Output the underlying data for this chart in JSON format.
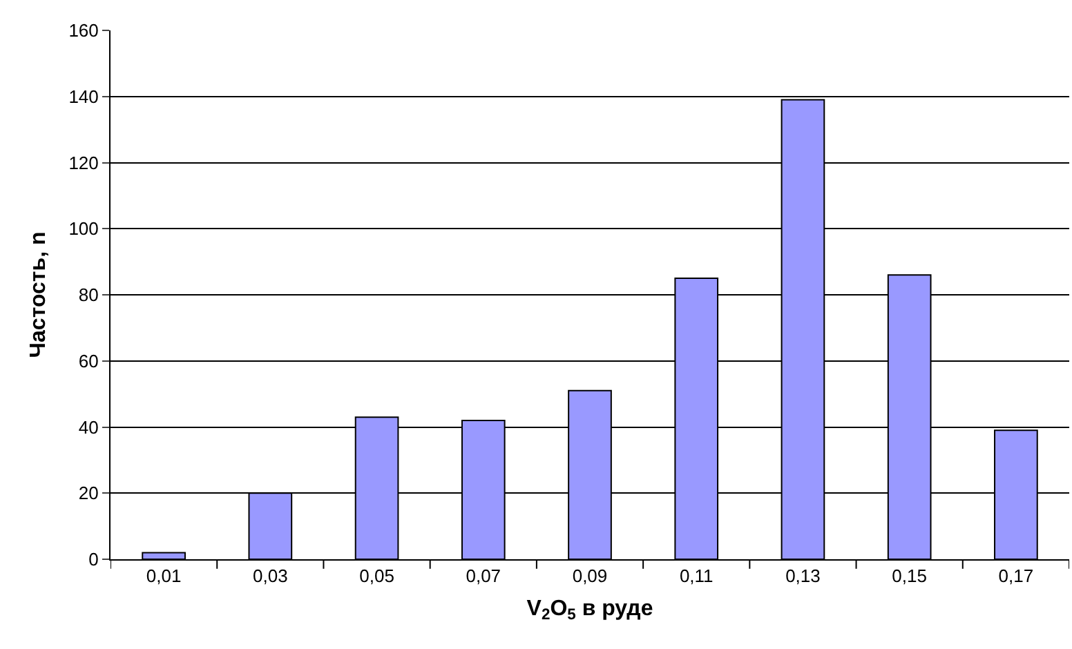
{
  "chart_data": {
    "type": "bar",
    "xlabel": "V$_{2}$O$_{5}$ в руде",
    "ylabel": "Частость, n",
    "categories": [
      "0,01",
      "0,03",
      "0,05",
      "0,07",
      "0,09",
      "0,11",
      "0,13",
      "0,15",
      "0,17"
    ],
    "values": [
      2,
      20,
      43,
      42,
      51,
      85,
      139,
      86,
      39
    ],
    "color": "#9999ff",
    "ylim": [
      0,
      160
    ],
    "yticks": [
      0,
      20,
      40,
      60,
      80,
      100,
      120,
      140,
      160
    ],
    "grid": "y",
    "legend": false
  }
}
